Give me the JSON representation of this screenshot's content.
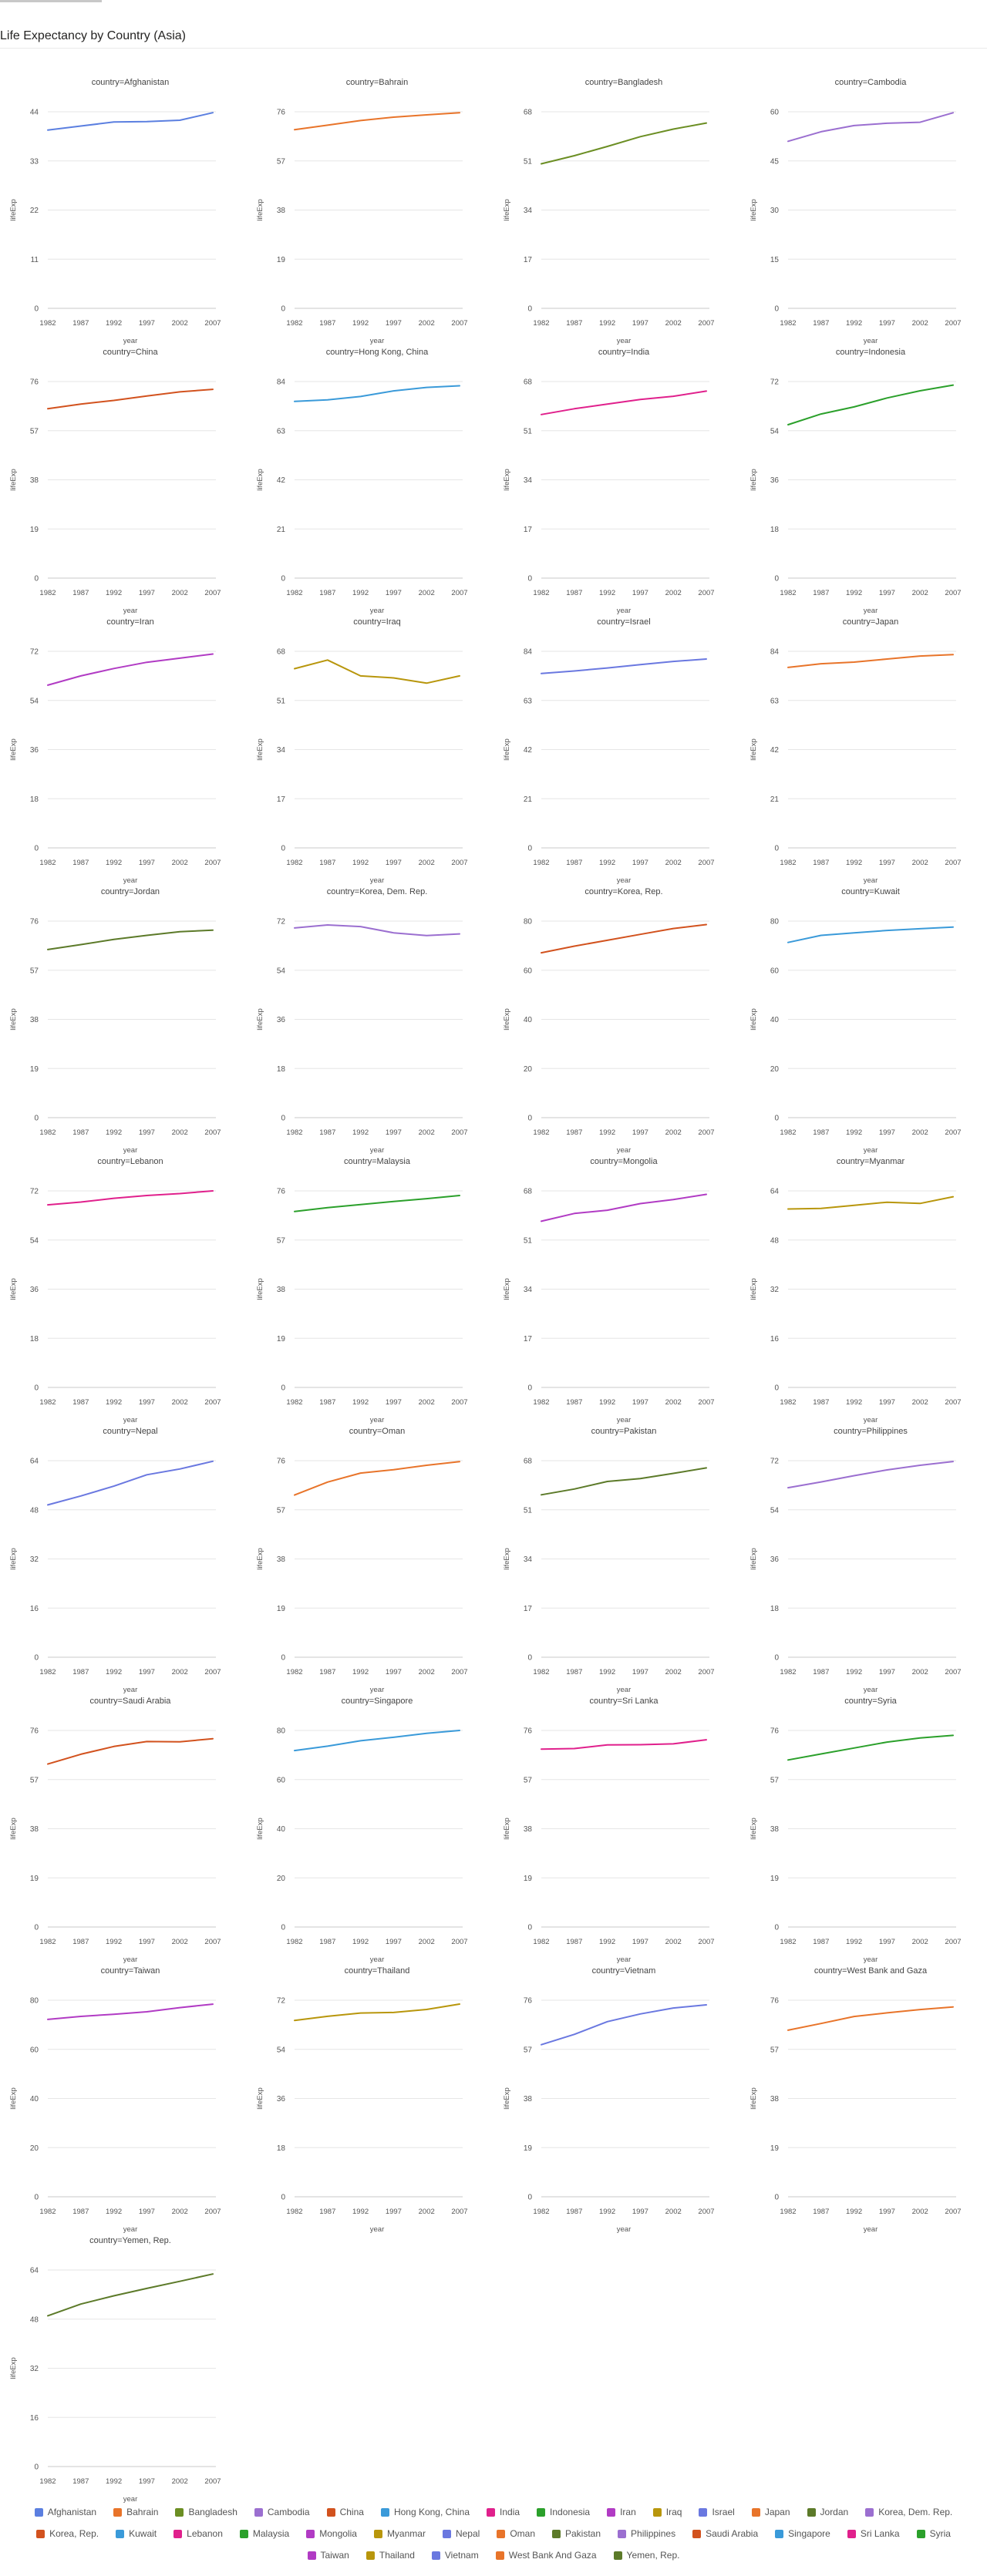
{
  "page": {
    "title": "Life Expectancy by Country (Asia)"
  },
  "chart_data": {
    "type": "line",
    "facet_label_prefix": "country=",
    "xlabel": "year",
    "ylabel": "lifeExp",
    "x": [
      1982,
      1987,
      1992,
      1997,
      2002,
      2007
    ],
    "x_ticks": [
      1982,
      1987,
      1992,
      1997,
      2002,
      2007
    ],
    "grid": true,
    "legend_position": "bottom",
    "series": [
      {
        "name": "Afghanistan",
        "color": "#5B7FE0",
        "ymax": 44,
        "yticks": [
          0,
          11,
          22,
          33,
          44
        ],
        "values": [
          39.9,
          40.8,
          41.7,
          41.8,
          42.1,
          43.8
        ]
      },
      {
        "name": "Bahrain",
        "color": "#E8742A",
        "ymax": 76,
        "yticks": [
          0,
          19,
          38,
          57,
          76
        ],
        "values": [
          69.1,
          70.8,
          72.6,
          73.9,
          74.8,
          75.6
        ]
      },
      {
        "name": "Bangladesh",
        "color": "#6B8E23",
        "ymax": 68,
        "yticks": [
          0,
          17,
          34,
          51,
          68
        ],
        "values": [
          50.0,
          52.8,
          56.0,
          59.4,
          62.0,
          64.1
        ]
      },
      {
        "name": "Cambodia",
        "color": "#9B6FD0",
        "ymax": 60,
        "yticks": [
          0,
          15,
          30,
          45,
          60
        ],
        "values": [
          51.0,
          53.9,
          55.8,
          56.5,
          56.8,
          59.7
        ]
      },
      {
        "name": "China",
        "color": "#D2521E",
        "ymax": 76,
        "yticks": [
          0,
          19,
          38,
          57,
          76
        ],
        "values": [
          65.5,
          67.3,
          68.7,
          70.4,
          72.0,
          73.0
        ]
      },
      {
        "name": "Hong Kong, China",
        "color": "#3A9AD9",
        "ymax": 84,
        "yticks": [
          0,
          21,
          42,
          63,
          84
        ],
        "values": [
          75.5,
          76.2,
          77.6,
          80.0,
          81.5,
          82.2
        ]
      },
      {
        "name": "India",
        "color": "#E0208C",
        "ymax": 68,
        "yticks": [
          0,
          17,
          34,
          51,
          68
        ],
        "values": [
          56.6,
          58.6,
          60.2,
          61.8,
          62.9,
          64.7
        ]
      },
      {
        "name": "Indonesia",
        "color": "#2BA02B",
        "ymax": 72,
        "yticks": [
          0,
          18,
          36,
          54,
          72
        ],
        "values": [
          56.2,
          60.1,
          62.7,
          66.0,
          68.6,
          70.7
        ]
      },
      {
        "name": "Iran",
        "color": "#B13BC4",
        "ymax": 72,
        "yticks": [
          0,
          18,
          36,
          54,
          72
        ],
        "values": [
          59.6,
          63.0,
          65.7,
          68.0,
          69.5,
          71.0
        ]
      },
      {
        "name": "Iraq",
        "color": "#B8960C",
        "ymax": 68,
        "yticks": [
          0,
          17,
          34,
          51,
          68
        ],
        "values": [
          62.0,
          65.0,
          59.5,
          58.8,
          57.0,
          59.5
        ]
      },
      {
        "name": "Israel",
        "color": "#6A78E0",
        "ymax": 84,
        "yticks": [
          0,
          21,
          42,
          63,
          84
        ],
        "values": [
          74.5,
          75.6,
          76.9,
          78.3,
          79.7,
          80.7
        ]
      },
      {
        "name": "Japan",
        "color": "#E8742A",
        "ymax": 84,
        "yticks": [
          0,
          21,
          42,
          63,
          84
        ],
        "values": [
          77.1,
          78.7,
          79.4,
          80.7,
          82.0,
          82.6
        ]
      },
      {
        "name": "Jordan",
        "color": "#5C7A29",
        "ymax": 76,
        "yticks": [
          0,
          19,
          38,
          57,
          76
        ],
        "values": [
          65.0,
          66.9,
          68.9,
          70.5,
          71.9,
          72.5
        ]
      },
      {
        "name": "Korea, Dem. Rep.",
        "color": "#9B6FD0",
        "ymax": 72,
        "yticks": [
          0,
          18,
          36,
          54,
          72
        ],
        "values": [
          69.5,
          70.6,
          70.0,
          67.7,
          66.7,
          67.3
        ]
      },
      {
        "name": "Korea, Rep.",
        "color": "#D2521E",
        "ymax": 80,
        "yticks": [
          0,
          20,
          40,
          60,
          80
        ],
        "values": [
          67.1,
          69.8,
          72.2,
          74.6,
          77.0,
          78.6
        ]
      },
      {
        "name": "Kuwait",
        "color": "#3A9AD9",
        "ymax": 80,
        "yticks": [
          0,
          20,
          40,
          60,
          80
        ],
        "values": [
          71.3,
          74.2,
          75.2,
          76.2,
          76.9,
          77.6
        ]
      },
      {
        "name": "Lebanon",
        "color": "#E0208C",
        "ymax": 72,
        "yticks": [
          0,
          18,
          36,
          54,
          72
        ],
        "values": [
          66.9,
          67.9,
          69.3,
          70.3,
          71.0,
          72.0
        ]
      },
      {
        "name": "Malaysia",
        "color": "#2BA02B",
        "ymax": 76,
        "yticks": [
          0,
          19,
          38,
          57,
          76
        ],
        "values": [
          68.0,
          69.5,
          70.7,
          71.9,
          73.0,
          74.2
        ]
      },
      {
        "name": "Mongolia",
        "color": "#B13BC4",
        "ymax": 68,
        "yticks": [
          0,
          17,
          34,
          51,
          68
        ],
        "values": [
          57.5,
          60.2,
          61.3,
          63.6,
          65.0,
          66.8
        ]
      },
      {
        "name": "Myanmar",
        "color": "#B8960C",
        "ymax": 64,
        "yticks": [
          0,
          16,
          32,
          48,
          64
        ],
        "values": [
          58.1,
          58.3,
          59.3,
          60.3,
          59.9,
          62.1
        ]
      },
      {
        "name": "Nepal",
        "color": "#6A78E0",
        "ymax": 64,
        "yticks": [
          0,
          16,
          32,
          48,
          64
        ],
        "values": [
          49.6,
          52.5,
          55.7,
          59.4,
          61.3,
          63.8
        ]
      },
      {
        "name": "Oman",
        "color": "#E8742A",
        "ymax": 76,
        "yticks": [
          0,
          19,
          38,
          57,
          76
        ],
        "values": [
          62.7,
          67.7,
          71.2,
          72.5,
          74.2,
          75.6
        ]
      },
      {
        "name": "Pakistan",
        "color": "#5C7A29",
        "ymax": 68,
        "yticks": [
          0,
          17,
          34,
          51,
          68
        ],
        "values": [
          56.2,
          58.2,
          60.8,
          61.8,
          63.6,
          65.5
        ]
      },
      {
        "name": "Philippines",
        "color": "#9B6FD0",
        "ymax": 72,
        "yticks": [
          0,
          18,
          36,
          54,
          72
        ],
        "values": [
          62.1,
          64.2,
          66.5,
          68.6,
          70.3,
          71.7
        ]
      },
      {
        "name": "Saudi Arabia",
        "color": "#D2521E",
        "ymax": 76,
        "yticks": [
          0,
          19,
          38,
          57,
          76
        ],
        "values": [
          63.0,
          66.8,
          69.8,
          71.7,
          71.6,
          72.8
        ]
      },
      {
        "name": "Singapore",
        "color": "#3A9AD9",
        "ymax": 80,
        "yticks": [
          0,
          20,
          40,
          60,
          80
        ],
        "values": [
          71.8,
          73.6,
          75.8,
          77.2,
          78.8,
          80.0
        ]
      },
      {
        "name": "Sri Lanka",
        "color": "#E0208C",
        "ymax": 76,
        "yticks": [
          0,
          19,
          38,
          57,
          76
        ],
        "values": [
          68.8,
          69.0,
          70.4,
          70.5,
          70.8,
          72.4
        ]
      },
      {
        "name": "Syria",
        "color": "#2BA02B",
        "ymax": 76,
        "yticks": [
          0,
          19,
          38,
          57,
          76
        ],
        "values": [
          64.6,
          66.9,
          69.2,
          71.5,
          73.1,
          74.1
        ]
      },
      {
        "name": "Taiwan",
        "color": "#B13BC4",
        "ymax": 80,
        "yticks": [
          0,
          20,
          40,
          60,
          80
        ],
        "values": [
          72.2,
          73.4,
          74.3,
          75.3,
          77.0,
          78.4
        ]
      },
      {
        "name": "Thailand",
        "color": "#B8960C",
        "ymax": 72,
        "yticks": [
          0,
          18,
          36,
          54,
          72
        ],
        "values": [
          64.6,
          66.1,
          67.3,
          67.5,
          68.6,
          70.6
        ]
      },
      {
        "name": "Vietnam",
        "color": "#6A78E0",
        "ymax": 76,
        "yticks": [
          0,
          19,
          38,
          57,
          76
        ],
        "values": [
          58.8,
          62.8,
          67.7,
          70.7,
          73.0,
          74.2
        ]
      },
      {
        "name": "West Bank and Gaza",
        "color": "#E8742A",
        "ymax": 76,
        "yticks": [
          0,
          19,
          38,
          57,
          76
        ],
        "values": [
          64.4,
          67.0,
          69.7,
          71.1,
          72.4,
          73.4
        ]
      },
      {
        "name": "Yemen, Rep.",
        "color": "#5C7A29",
        "ymax": 64,
        "yticks": [
          0,
          16,
          32,
          48,
          64
        ],
        "values": [
          49.1,
          52.9,
          55.6,
          58.0,
          60.3,
          62.7
        ]
      }
    ]
  },
  "legend": {
    "items": [
      {
        "label": "Afghanistan",
        "color": "#5B7FE0"
      },
      {
        "label": "Bahrain",
        "color": "#E8742A"
      },
      {
        "label": "Bangladesh",
        "color": "#6B8E23"
      },
      {
        "label": "Cambodia",
        "color": "#9B6FD0"
      },
      {
        "label": "China",
        "color": "#D2521E"
      },
      {
        "label": "Hong Kong, China",
        "color": "#3A9AD9"
      },
      {
        "label": "India",
        "color": "#E0208C"
      },
      {
        "label": "Indonesia",
        "color": "#2BA02B"
      },
      {
        "label": "Iran",
        "color": "#B13BC4"
      },
      {
        "label": "Iraq",
        "color": "#B8960C"
      },
      {
        "label": "Israel",
        "color": "#6A78E0"
      },
      {
        "label": "Japan",
        "color": "#E8742A"
      },
      {
        "label": "Jordan",
        "color": "#5C7A29"
      },
      {
        "label": "Korea, Dem. Rep.",
        "color": "#9B6FD0"
      },
      {
        "label": "Korea, Rep.",
        "color": "#D2521E"
      },
      {
        "label": "Kuwait",
        "color": "#3A9AD9"
      },
      {
        "label": "Lebanon",
        "color": "#E0208C"
      },
      {
        "label": "Malaysia",
        "color": "#2BA02B"
      },
      {
        "label": "Mongolia",
        "color": "#B13BC4"
      },
      {
        "label": "Myanmar",
        "color": "#B8960C"
      },
      {
        "label": "Nepal",
        "color": "#6A78E0"
      },
      {
        "label": "Oman",
        "color": "#E8742A"
      },
      {
        "label": "Pakistan",
        "color": "#5C7A29"
      },
      {
        "label": "Philippines",
        "color": "#9B6FD0"
      },
      {
        "label": "Saudi Arabia",
        "color": "#D2521E"
      },
      {
        "label": "Singapore",
        "color": "#3A9AD9"
      },
      {
        "label": "Sri Lanka",
        "color": "#E0208C"
      },
      {
        "label": "Syria",
        "color": "#2BA02B"
      },
      {
        "label": "Taiwan",
        "color": "#B13BC4"
      },
      {
        "label": "Thailand",
        "color": "#B8960C"
      },
      {
        "label": "Vietnam",
        "color": "#6A78E0"
      },
      {
        "label": "West Bank And Gaza",
        "color": "#E8742A"
      },
      {
        "label": "Yemen, Rep.",
        "color": "#5C7A29"
      }
    ]
  }
}
